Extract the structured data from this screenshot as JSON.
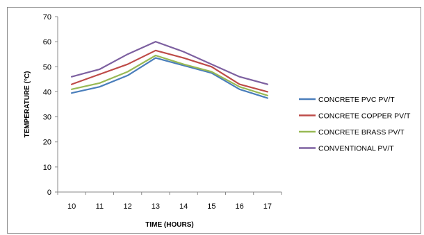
{
  "chart_data": {
    "type": "line",
    "title": "",
    "xlabel": "TIME (HOURS)",
    "ylabel": "TEMPERATURE (°C)",
    "ylim": [
      0,
      70
    ],
    "yticks": [
      0,
      10,
      20,
      30,
      40,
      50,
      60,
      70
    ],
    "grid": false,
    "legend_position": "right",
    "categories": [
      "10",
      "11",
      "12",
      "13",
      "14",
      "15",
      "16",
      "17"
    ],
    "series": [
      {
        "name": "CONCRETE PVC PV/T",
        "color": "#4a7ebb",
        "values": [
          39.5,
          42,
          46.5,
          53.5,
          50.5,
          47.5,
          41,
          37.5
        ]
      },
      {
        "name": "CONCRETE COPPER PV/T",
        "color": "#be4b48",
        "values": [
          43,
          47,
          51,
          56.5,
          53.5,
          50,
          43,
          40
        ]
      },
      {
        "name": "CONCRETE BRASS PV/T",
        "color": "#98b954",
        "values": [
          41,
          43.5,
          48,
          54.5,
          51,
          48,
          42,
          38.5
        ]
      },
      {
        "name": "CONVENTIONAL PV/T",
        "color": "#7d60a0",
        "values": [
          46,
          49,
          55,
          60,
          56,
          51,
          46,
          43
        ]
      }
    ]
  }
}
